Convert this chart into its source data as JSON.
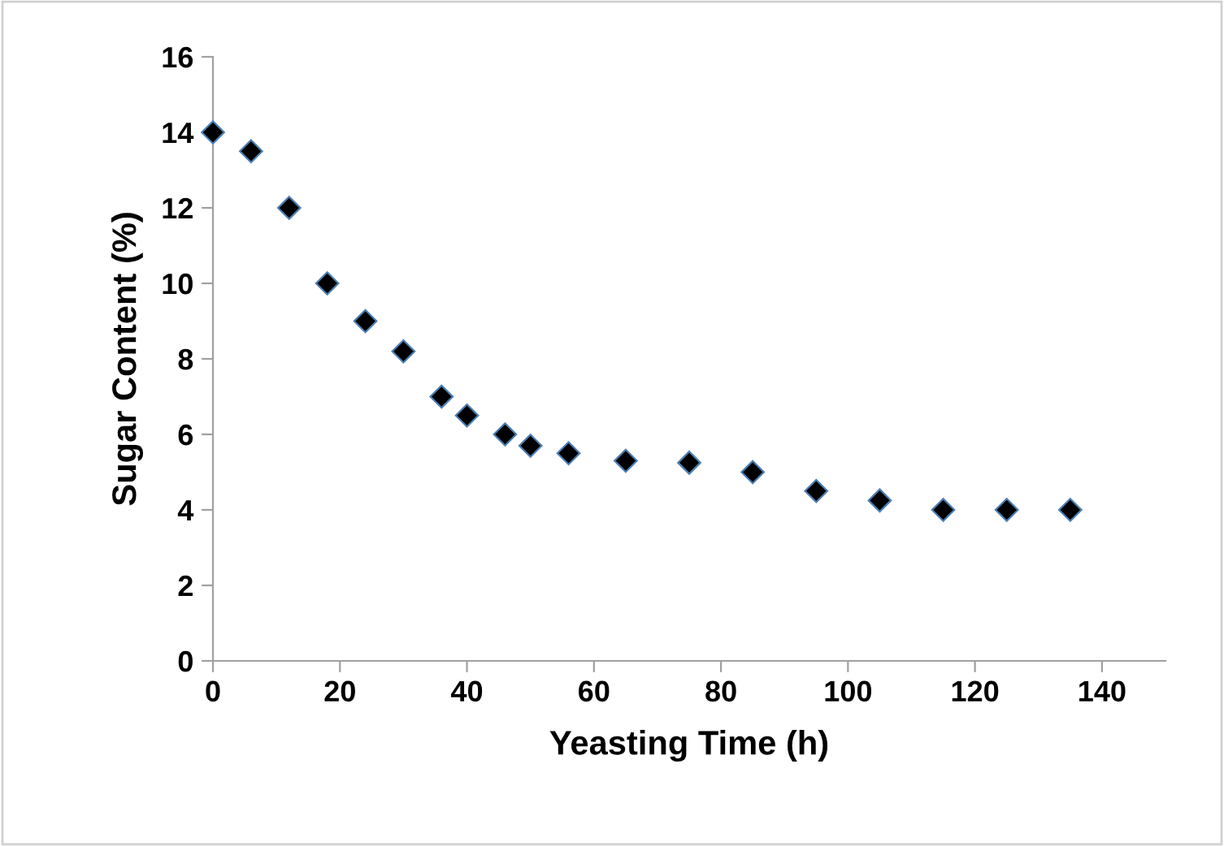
{
  "chart_data": {
    "type": "scatter",
    "xlabel": "Yeasting Time (h)",
    "ylabel": "Sugar Content (%)",
    "x": [
      0,
      6,
      12,
      18,
      24,
      30,
      36,
      40,
      46,
      50,
      56,
      65,
      75,
      85,
      95,
      105,
      115,
      125,
      135
    ],
    "series": [
      {
        "color": "#000000",
        "values": [
          14,
          13.5,
          12,
          10,
          9,
          8.2,
          7,
          6.5,
          6,
          5.7,
          5.5,
          5.3,
          5.25,
          5,
          4.5,
          4.25,
          4,
          4,
          4
        ]
      }
    ],
    "marker": "diamond",
    "xlim": [
      0,
      150
    ],
    "xticks": [
      0,
      20,
      40,
      60,
      80,
      100,
      120,
      140
    ],
    "ylim": [
      0,
      16
    ],
    "yticks": [
      0,
      2,
      4,
      6,
      8,
      10,
      12,
      14,
      16
    ],
    "grid": false,
    "legend": false
  }
}
